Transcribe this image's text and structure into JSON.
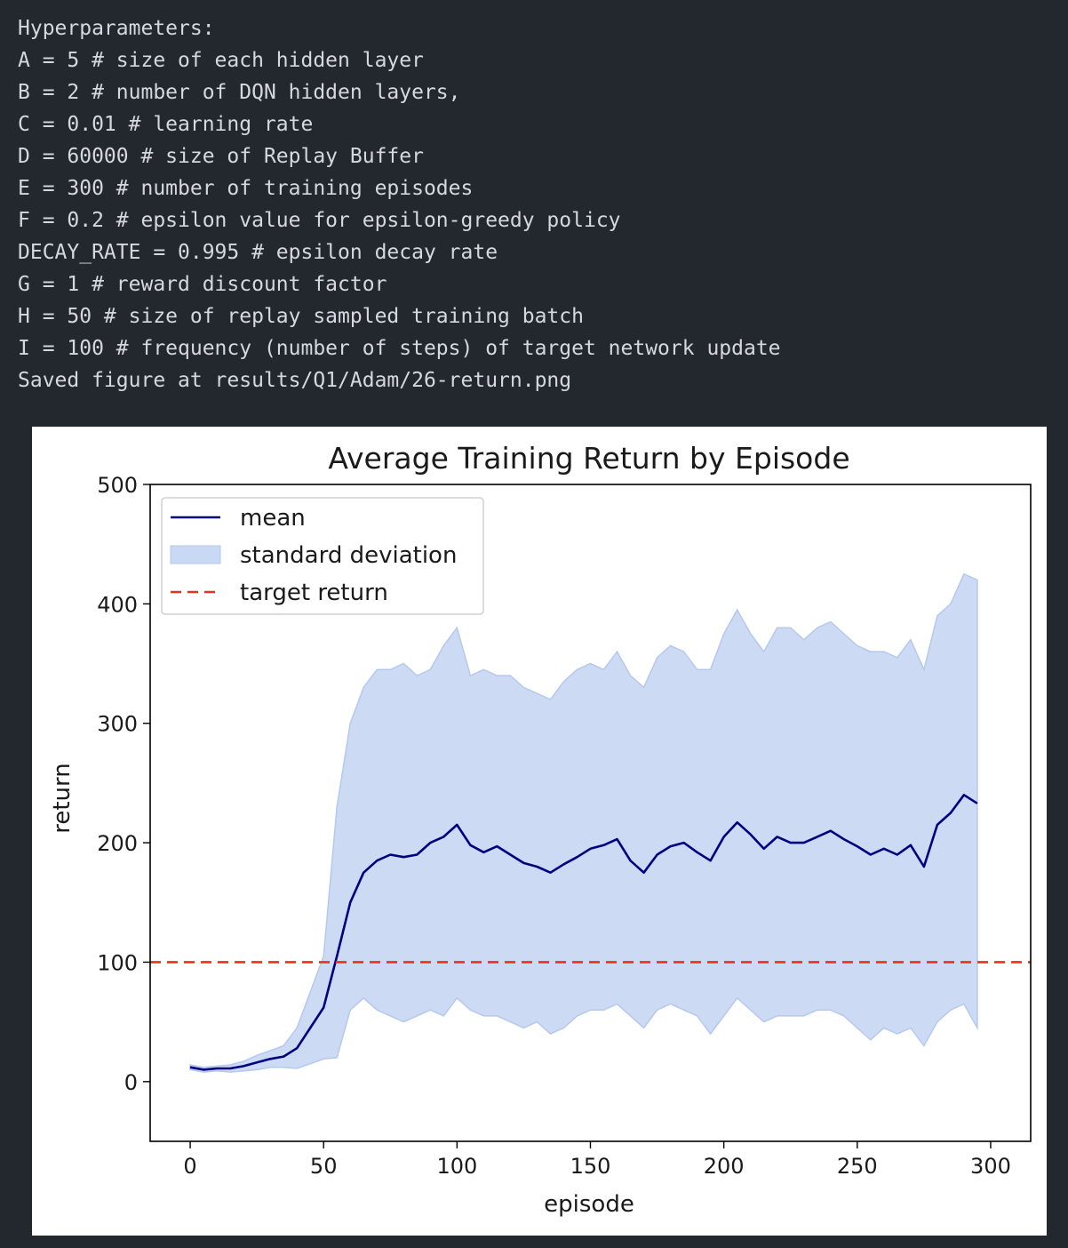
{
  "console": {
    "lines": [
      "Hyperparameters:",
      "A = 5 # size of each hidden layer",
      "B = 2 # number of DQN hidden layers,",
      "C = 0.01 # learning rate",
      "D = 60000 # size of Replay Buffer",
      "E = 300 # number of training episodes",
      "F = 0.2 # epsilon value for epsilon-greedy policy",
      "DECAY_RATE = 0.995 # epsilon decay rate",
      "G = 1 # reward discount factor",
      "H = 50 # size of replay sampled training batch",
      "I = 100 # frequency (number of steps) of target network update",
      "Saved figure at results/Q1/Adam/26-return.png"
    ]
  },
  "chart_data": {
    "type": "line",
    "title": "Average Training Return by Episode",
    "xlabel": "episode",
    "ylabel": "return",
    "xlim": [
      -15,
      315
    ],
    "ylim": [
      -50,
      500
    ],
    "xticks": [
      0,
      50,
      100,
      150,
      200,
      250,
      300
    ],
    "yticks": [
      0,
      100,
      200,
      300,
      400,
      500
    ],
    "grid": false,
    "legend_position": "upper-left",
    "target_return": 100,
    "colors": {
      "mean": "#000080",
      "std_fill": "#c9d8f3",
      "std_edge": "#b5c8ee",
      "target": "#e8311f"
    },
    "legend": [
      {
        "label": "mean",
        "kind": "line"
      },
      {
        "label": "standard deviation",
        "kind": "patch"
      },
      {
        "label": "target return",
        "kind": "dashed"
      }
    ],
    "series": [
      {
        "name": "mean",
        "x_start": 0,
        "x_step": 5,
        "values": [
          12,
          10,
          11,
          11,
          13,
          16,
          19,
          21,
          28,
          45,
          62,
          105,
          150,
          175,
          185,
          190,
          188,
          190,
          200,
          205,
          215,
          198,
          192,
          197,
          190,
          183,
          180,
          175,
          182,
          188,
          195,
          198,
          203,
          185,
          175,
          190,
          197,
          200,
          192,
          185,
          205,
          217,
          207,
          195,
          205,
          200,
          200,
          205,
          210,
          203,
          197,
          190,
          195,
          190,
          198,
          180,
          215,
          225,
          240,
          233
        ]
      },
      {
        "name": "mean + std",
        "x_start": 0,
        "x_step": 5,
        "values": [
          14,
          12,
          13,
          14,
          17,
          22,
          26,
          30,
          45,
          75,
          105,
          230,
          300,
          330,
          345,
          345,
          350,
          340,
          345,
          365,
          380,
          340,
          345,
          340,
          340,
          330,
          325,
          320,
          335,
          345,
          350,
          345,
          360,
          340,
          330,
          355,
          365,
          360,
          345,
          345,
          375,
          395,
          375,
          360,
          380,
          380,
          370,
          380,
          385,
          375,
          365,
          360,
          360,
          355,
          370,
          345,
          390,
          400,
          425,
          420
        ]
      },
      {
        "name": "mean - std",
        "x_start": 0,
        "x_step": 5,
        "values": [
          10,
          8,
          9,
          8,
          9,
          10,
          12,
          12,
          11,
          15,
          19,
          20,
          60,
          70,
          60,
          55,
          50,
          55,
          60,
          55,
          70,
          60,
          55,
          55,
          50,
          45,
          50,
          40,
          45,
          55,
          60,
          60,
          65,
          55,
          45,
          60,
          65,
          60,
          55,
          40,
          55,
          70,
          60,
          50,
          55,
          55,
          55,
          60,
          60,
          55,
          45,
          35,
          45,
          40,
          45,
          30,
          50,
          60,
          65,
          45
        ]
      }
    ]
  }
}
